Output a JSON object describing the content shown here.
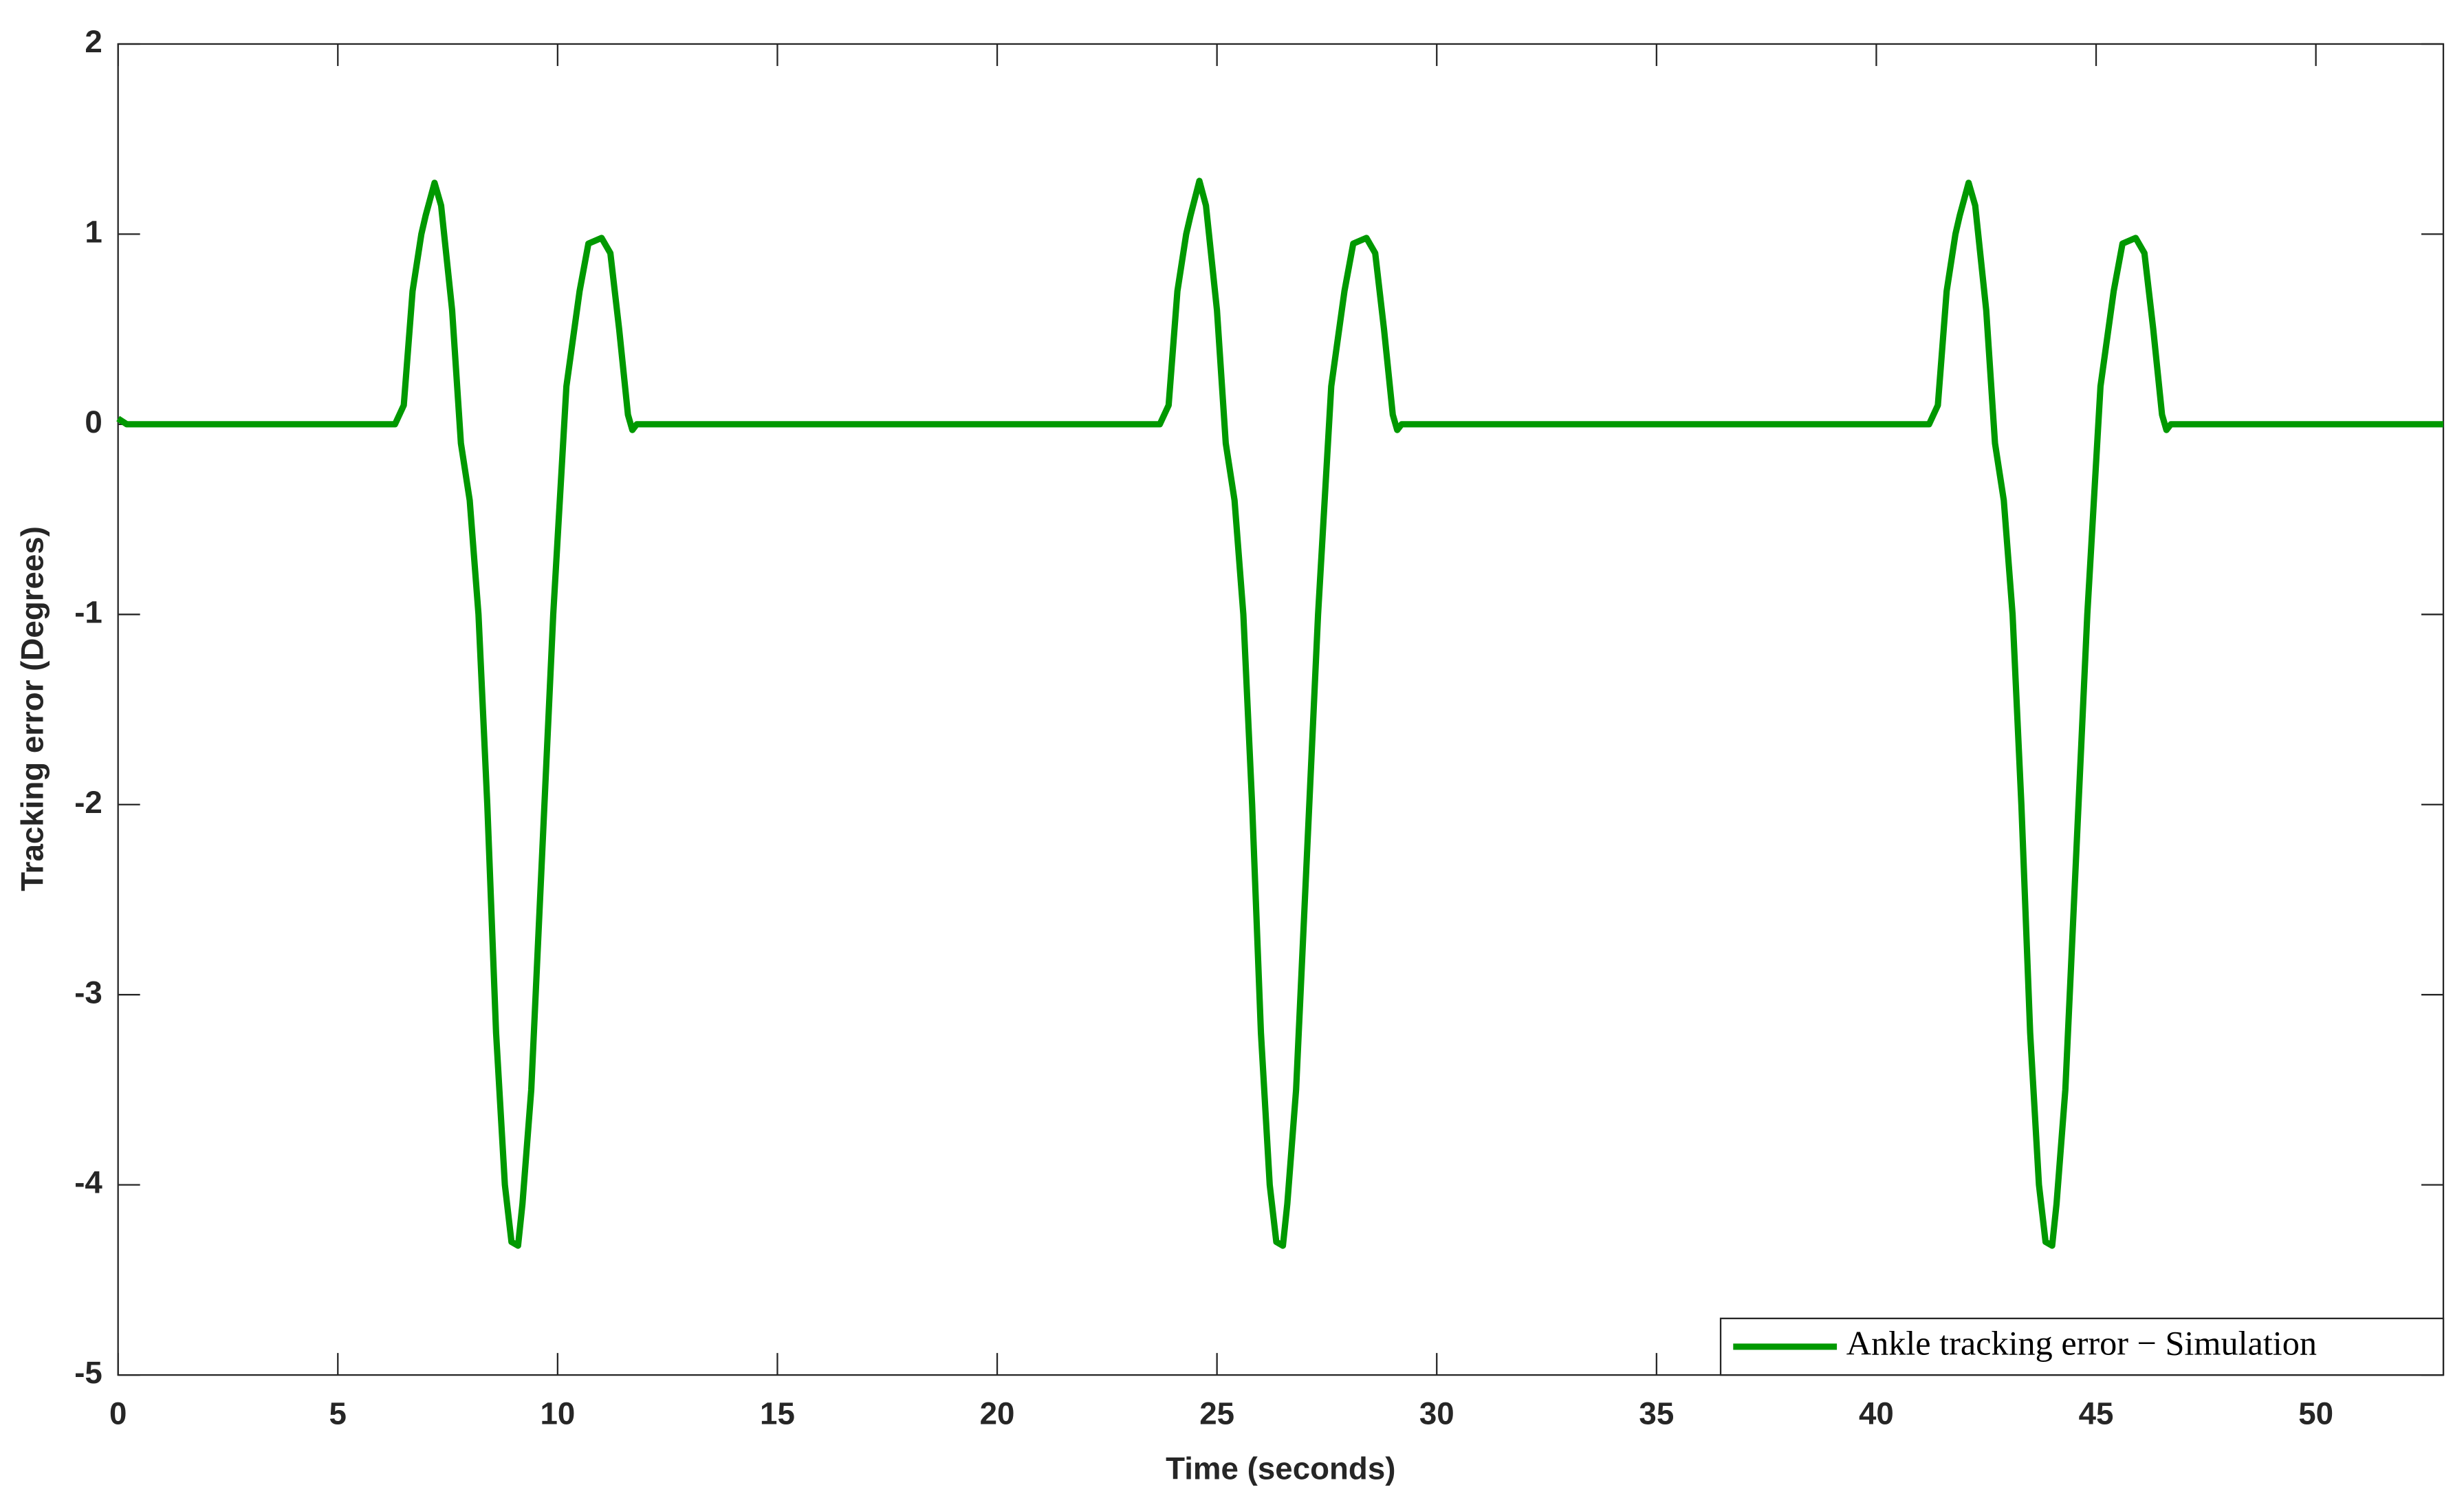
{
  "chart_data": {
    "type": "line",
    "x_label": "Time (seconds)",
    "y_label": "Tracking error  (Degrees)",
    "xlim": [
      0,
      52.9
    ],
    "ylim": [
      -5,
      2
    ],
    "xticks": [
      0,
      5,
      10,
      15,
      20,
      25,
      30,
      35,
      40,
      45,
      50
    ],
    "yticks": [
      -5,
      -4,
      -3,
      -2,
      -1,
      0,
      1,
      2
    ],
    "grid": false,
    "legend": "lower right",
    "x": [
      0,
      0.2,
      6.3,
      6.5,
      6.7,
      6.9,
      7.0,
      7.2,
      7.35,
      7.6,
      7.8,
      8.0,
      8.2,
      8.4,
      8.6,
      8.8,
      8.95,
      9.1,
      9.2,
      9.4,
      9.6,
      9.9,
      10.2,
      10.5,
      10.7,
      11.0,
      11.2,
      11.4,
      11.6,
      11.7,
      11.8,
      23.7,
      23.9,
      24.1,
      24.3,
      24.4,
      24.6,
      24.75,
      25.0,
      25.2,
      25.4,
      25.6,
      25.8,
      26.0,
      26.2,
      26.35,
      26.5,
      26.6,
      26.8,
      27.0,
      27.3,
      27.6,
      27.9,
      28.1,
      28.4,
      28.6,
      28.8,
      29.0,
      29.1,
      29.2,
      41.2,
      41.4,
      41.6,
      41.8,
      41.9,
      42.1,
      42.25,
      42.5,
      42.7,
      42.9,
      43.1,
      43.3,
      43.5,
      43.7,
      43.85,
      44.0,
      44.1,
      44.3,
      44.5,
      44.8,
      45.1,
      45.4,
      45.6,
      45.9,
      46.1,
      46.3,
      46.5,
      46.6,
      46.7,
      52.9
    ],
    "series": [
      {
        "name": "Ankle tracking error − Simulation",
        "color": "#009900",
        "values": [
          0.03,
          0,
          0,
          0.1,
          0.7,
          1.0,
          1.1,
          1.27,
          1.15,
          0.6,
          -0.1,
          -0.4,
          -1.0,
          -2.0,
          -3.2,
          -4.0,
          -4.3,
          -4.32,
          -4.1,
          -3.5,
          -2.5,
          -1.0,
          0.2,
          0.7,
          0.95,
          0.98,
          0.9,
          0.5,
          0.05,
          -0.03,
          0,
          0,
          0.1,
          0.7,
          1.0,
          1.1,
          1.28,
          1.15,
          0.6,
          -0.1,
          -0.4,
          -1.0,
          -2.0,
          -3.2,
          -4.0,
          -4.3,
          -4.32,
          -4.1,
          -3.5,
          -2.5,
          -1.0,
          0.2,
          0.7,
          0.95,
          0.98,
          0.9,
          0.5,
          0.05,
          -0.03,
          0,
          0,
          0.1,
          0.7,
          1.0,
          1.1,
          1.27,
          1.15,
          0.6,
          -0.1,
          -0.4,
          -1.0,
          -2.0,
          -3.2,
          -4.0,
          -4.3,
          -4.32,
          -4.1,
          -3.5,
          -2.5,
          -1.0,
          0.2,
          0.7,
          0.95,
          0.98,
          0.9,
          0.5,
          0.05,
          -0.03,
          0,
          0
        ]
      }
    ]
  }
}
